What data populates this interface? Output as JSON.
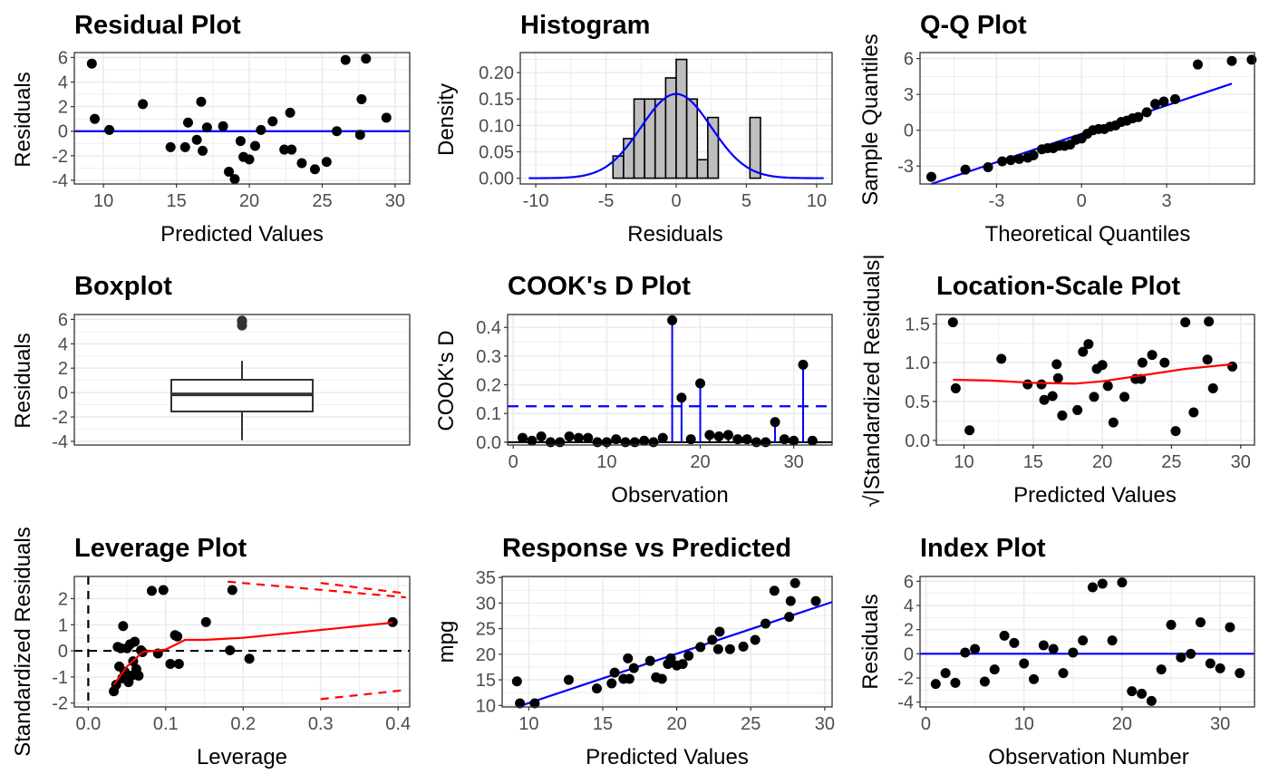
{
  "colors": {
    "point": "#000000",
    "line_blue": "#0000ff",
    "line_red": "#ff0000",
    "grid": "#ebebeb",
    "bar_fill": "#bebebe",
    "panel_border": "#333333",
    "tick_text": "#4d4d4d"
  },
  "chart_data": [
    {
      "id": "residual",
      "type": "scatter",
      "title": "Residual Plot",
      "xlabel": "Predicted Values",
      "ylabel": "Residuals",
      "xlim": [
        8,
        31
      ],
      "ylim": [
        -4.3,
        6.4
      ],
      "xticks": [
        10,
        15,
        20,
        25,
        30
      ],
      "yticks": [
        -4,
        -2,
        0,
        2,
        4,
        6
      ],
      "ytick_labels": [
        "-4",
        "-2",
        "0",
        "2",
        "4",
        "6"
      ],
      "x": [
        9.2,
        9.4,
        10.4,
        12.7,
        14.6,
        15.6,
        15.8,
        16.4,
        16.7,
        16.8,
        17.1,
        18.2,
        18.6,
        19.0,
        19.4,
        19.6,
        20.0,
        20.4,
        20.8,
        21.6,
        22.4,
        22.8,
        22.9,
        23.6,
        24.5,
        25.3,
        26.0,
        26.6,
        27.6,
        27.7,
        28.0,
        29.4
      ],
      "y": [
        5.5,
        1.0,
        0.1,
        2.2,
        -1.3,
        -1.3,
        0.7,
        -0.7,
        2.4,
        -1.6,
        0.3,
        0.4,
        -3.3,
        -3.9,
        -0.8,
        -2.1,
        -2.3,
        -1.2,
        0.1,
        0.8,
        -1.5,
        1.5,
        -1.5,
        -2.6,
        -3.1,
        -2.5,
        0.0,
        5.8,
        -0.3,
        2.6,
        5.9,
        1.1
      ],
      "hlines": [
        {
          "y": 0,
          "color": "#0000ff",
          "style": "solid"
        }
      ]
    },
    {
      "id": "histogram",
      "type": "bar",
      "title": "Histogram",
      "xlabel": "Residuals",
      "ylabel": "Density",
      "xlim": [
        -11.1,
        11.1
      ],
      "ylim": [
        -0.011,
        0.238
      ],
      "xticks": [
        -10,
        -5,
        0,
        5,
        10
      ],
      "yticks": [
        0,
        0.05,
        0.1,
        0.15,
        0.2
      ],
      "ytick_labels": [
        "0.00",
        "0.05",
        "0.10",
        "0.15",
        "0.20"
      ],
      "bin_edges": [
        -10.5,
        -9.75,
        -9.0,
        -8.25,
        -7.5,
        -6.75,
        -6.0,
        -5.25,
        -4.5,
        -3.75,
        -3.0,
        -2.25,
        -1.5,
        -0.75,
        0.0,
        0.75,
        1.5,
        2.25,
        3.0,
        3.75,
        4.5,
        5.25,
        6.0,
        6.75,
        7.5,
        8.25,
        9.0,
        9.75,
        10.5
      ],
      "values": [
        0,
        0,
        0,
        0,
        0,
        0,
        0,
        0,
        0.042,
        0.075,
        0.15,
        0.15,
        0.15,
        0.19,
        0.225,
        0.15,
        0.035,
        0.115,
        0,
        0,
        0,
        0.115,
        0,
        0,
        0,
        0,
        0,
        0
      ],
      "density_curve": {
        "mean": 0,
        "sd": 2.5,
        "color": "#0000ff"
      }
    },
    {
      "id": "qq",
      "type": "scatter",
      "title": "Q-Q Plot",
      "xlabel": "Theoretical Quantiles",
      "ylabel": "Sample Quantiles",
      "xlim": [
        -5.7,
        6.1
      ],
      "ylim": [
        -4.5,
        6.5
      ],
      "xticks": [
        -3,
        0,
        3
      ],
      "yticks": [
        -3,
        0,
        3,
        6
      ],
      "ytick_labels": [
        "-3",
        "0",
        "3",
        "6"
      ],
      "x": [
        -5.3,
        -4.1,
        -3.3,
        -2.8,
        -2.5,
        -2.2,
        -1.9,
        -1.7,
        -1.4,
        -1.2,
        -1.0,
        -0.8,
        -0.6,
        -0.4,
        -0.2,
        0.0,
        0.2,
        0.4,
        0.6,
        0.8,
        1.0,
        1.2,
        1.4,
        1.6,
        1.8,
        2.0,
        2.3,
        2.6,
        2.9,
        3.3,
        4.1,
        5.3
      ],
      "y": [
        -3.9,
        -3.3,
        -3.1,
        -2.6,
        -2.5,
        -2.4,
        -2.3,
        -2.1,
        -1.6,
        -1.5,
        -1.5,
        -1.3,
        -1.3,
        -1.2,
        -0.8,
        -0.7,
        -0.3,
        0.0,
        0.1,
        0.1,
        0.3,
        0.4,
        0.7,
        0.8,
        1.0,
        1.1,
        1.5,
        2.2,
        2.4,
        2.6,
        5.5,
        5.8
      ],
      "extra_points": [
        [
          6.0,
          5.9
        ]
      ],
      "ref_line": {
        "x": [
          -5.3,
          5.3
        ],
        "y": [
          -4.5,
          3.9
        ],
        "color": "#0000ff"
      }
    },
    {
      "id": "boxplot",
      "type": "box",
      "title": "Boxplot",
      "xlabel": "",
      "ylabel": "Residuals",
      "ylim": [
        -4.3,
        6.4
      ],
      "yticks": [
        -4,
        -2,
        0,
        2,
        4,
        6
      ],
      "ytick_labels": [
        "-4",
        "-2",
        "0",
        "2",
        "4",
        "6"
      ],
      "box": {
        "whisker_low": -3.9,
        "q1": -1.55,
        "median": -0.15,
        "q3": 1.05,
        "whisker_high": 2.6
      },
      "outliers": [
        5.5,
        5.8,
        5.9
      ]
    },
    {
      "id": "cooks",
      "type": "line",
      "title": "COOK's D Plot",
      "xlabel": "Observation",
      "ylabel": "COOK's D",
      "xlim": [
        -0.6,
        34.1
      ],
      "ylim": [
        -0.01,
        0.445
      ],
      "xticks": [
        0,
        10,
        20,
        30
      ],
      "yticks": [
        0,
        0.1,
        0.2,
        0.3,
        0.4
      ],
      "ytick_labels": [
        "0.0",
        "0.1",
        "0.2",
        "0.3",
        "0.4"
      ],
      "x": [
        1,
        2,
        3,
        4,
        5,
        6,
        7,
        8,
        9,
        10,
        11,
        12,
        13,
        14,
        15,
        16,
        17,
        18,
        19,
        20,
        21,
        22,
        23,
        24,
        25,
        26,
        27,
        28,
        29,
        30,
        31,
        32
      ],
      "y": [
        0.015,
        0.005,
        0.02,
        0.0,
        0.0,
        0.02,
        0.015,
        0.015,
        0.0,
        0.0,
        0.01,
        0.0,
        0.0,
        0.005,
        0.0,
        0.015,
        0.425,
        0.155,
        0.01,
        0.205,
        0.025,
        0.02,
        0.025,
        0.01,
        0.01,
        0.0,
        0.0,
        0.07,
        0.01,
        0.005,
        0.27,
        0.005
      ],
      "threshold": 0.125,
      "highlight": [
        17,
        18,
        20,
        28,
        31
      ]
    },
    {
      "id": "locscale",
      "type": "scatter",
      "title": "Location-Scale Plot",
      "xlabel": "Predicted Values",
      "ylabel": "√|Standardized Residuals|",
      "xlim": [
        8,
        31
      ],
      "ylim": [
        -0.06,
        1.62
      ],
      "xticks": [
        10,
        15,
        20,
        25,
        30
      ],
      "yticks": [
        0,
        0.5,
        1.0,
        1.5
      ],
      "ytick_labels": [
        "0.0",
        "0.5",
        "1.0",
        "1.5"
      ],
      "x": [
        9.2,
        9.4,
        10.4,
        12.7,
        14.6,
        15.6,
        15.8,
        16.4,
        16.7,
        16.8,
        17.1,
        18.2,
        18.6,
        19.0,
        19.4,
        19.6,
        20.0,
        20.4,
        20.8,
        21.6,
        22.4,
        22.8,
        22.9,
        23.6,
        24.5,
        25.3,
        26.0,
        26.6,
        27.6,
        27.7,
        28.0,
        29.4
      ],
      "y": [
        1.52,
        0.67,
        0.13,
        1.05,
        0.72,
        0.72,
        0.52,
        0.57,
        0.98,
        0.8,
        0.32,
        0.39,
        1.14,
        1.24,
        0.56,
        0.92,
        0.97,
        0.7,
        0.23,
        0.56,
        0.79,
        0.79,
        1.0,
        1.1,
        1.0,
        0.12,
        1.52,
        0.36,
        1.04,
        1.53,
        0.67,
        0.95
      ],
      "smooth": {
        "x": [
          9.2,
          12,
          15,
          18,
          20,
          23,
          26,
          29.4
        ],
        "y": [
          0.78,
          0.77,
          0.74,
          0.73,
          0.76,
          0.84,
          0.92,
          0.98
        ],
        "color": "#ff0000"
      }
    },
    {
      "id": "leverage",
      "type": "scatter",
      "title": "Leverage Plot",
      "xlabel": "Leverage",
      "ylabel": "Standardized Residuals",
      "xlim": [
        -0.018,
        0.415
      ],
      "ylim": [
        -2.15,
        2.85
      ],
      "xticks": [
        0,
        0.1,
        0.2,
        0.3,
        0.4
      ],
      "yticks": [
        -2,
        -1,
        0,
        1,
        2
      ],
      "xtick_labels": [
        "0.0",
        "0.1",
        "0.2",
        "0.3",
        "0.4"
      ],
      "ytick_labels": [
        "-2",
        "-1",
        "0",
        "1",
        "2"
      ],
      "x": [
        0.033,
        0.036,
        0.038,
        0.04,
        0.042,
        0.044,
        0.045,
        0.047,
        0.05,
        0.052,
        0.054,
        0.056,
        0.058,
        0.06,
        0.062,
        0.065,
        0.068,
        0.07,
        0.082,
        0.09,
        0.097,
        0.106,
        0.112,
        0.115,
        0.117,
        0.152,
        0.183,
        0.186,
        0.208,
        0.393
      ],
      "y": [
        -1.55,
        -1.3,
        0.15,
        -0.6,
        0.1,
        -1.05,
        0.95,
        -0.8,
        0.1,
        -1.2,
        0.25,
        -0.95,
        -0.4,
        0.35,
        -0.7,
        -0.95,
        0.02,
        -0.05,
        2.3,
        -0.1,
        2.33,
        -0.5,
        0.6,
        0.55,
        -0.5,
        1.1,
        0.02,
        2.33,
        -0.3,
        1.1
      ],
      "smooth": {
        "x": [
          0.033,
          0.05,
          0.07,
          0.1,
          0.125,
          0.15,
          0.2,
          0.3,
          0.393
        ],
        "y": [
          -1.3,
          -0.6,
          -0.05,
          0.05,
          0.42,
          0.42,
          0.5,
          0.8,
          1.08
        ],
        "color": "#ff0000"
      },
      "hlines": [
        {
          "y": 0,
          "color": "#000000",
          "style": "dashed"
        }
      ],
      "vlines": [
        {
          "x": 0,
          "color": "#000000",
          "style": "dashed"
        }
      ],
      "contours": [
        {
          "x": [
            0.18,
            0.41
          ],
          "y": [
            2.65,
            2.05
          ]
        },
        {
          "x": [
            0.3,
            0.41
          ],
          "y": [
            2.6,
            2.2
          ]
        },
        {
          "x": [
            0.3,
            0.41
          ],
          "y": [
            -1.85,
            -1.5
          ]
        }
      ]
    },
    {
      "id": "response",
      "type": "scatter",
      "title": "Response vs Predicted",
      "xlabel": "Predicted Values",
      "ylabel": "mpg",
      "xlim": [
        8.2,
        30.5
      ],
      "ylim": [
        9.7,
        35.2
      ],
      "xticks": [
        10,
        15,
        20,
        25,
        30
      ],
      "yticks": [
        10,
        15,
        20,
        25,
        30,
        35
      ],
      "ytick_labels": [
        "10",
        "15",
        "20",
        "25",
        "30",
        "35"
      ],
      "x": [
        9.2,
        9.4,
        10.4,
        12.7,
        14.6,
        15.6,
        15.8,
        16.4,
        16.7,
        16.8,
        17.1,
        18.2,
        18.6,
        19.0,
        19.4,
        19.6,
        20.0,
        20.4,
        20.8,
        21.6,
        22.4,
        22.8,
        22.9,
        23.6,
        24.5,
        25.3,
        26.0,
        26.6,
        27.6,
        27.7,
        28.0,
        29.4
      ],
      "y": [
        14.7,
        10.4,
        10.4,
        15.0,
        13.3,
        14.3,
        16.4,
        15.2,
        19.2,
        15.2,
        17.3,
        18.7,
        15.5,
        15.2,
        18.1,
        19.2,
        17.8,
        18.1,
        19.7,
        21.4,
        22.8,
        21.0,
        24.4,
        21.0,
        21.5,
        22.8,
        26.0,
        32.4,
        27.3,
        30.4,
        33.9,
        30.4
      ],
      "ref_line": {
        "x": [
          9.2,
          30.5
        ],
        "y": [
          9.7,
          30.2
        ],
        "color": "#0000ff"
      }
    },
    {
      "id": "index",
      "type": "scatter",
      "title": "Index Plot",
      "xlabel": "Observation Number",
      "ylabel": "Residuals",
      "xlim": [
        -0.6,
        33.5
      ],
      "ylim": [
        -4.4,
        6.4
      ],
      "xticks": [
        0,
        10,
        20,
        30
      ],
      "yticks": [
        -4,
        -2,
        0,
        2,
        4,
        6
      ],
      "ytick_labels": [
        "-4",
        "-2",
        "0",
        "2",
        "4",
        "6"
      ],
      "x": [
        1,
        2,
        3,
        4,
        5,
        6,
        7,
        8,
        9,
        10,
        11,
        12,
        13,
        14,
        15,
        16,
        17,
        18,
        19,
        20,
        21,
        22,
        23,
        24,
        25,
        26,
        27,
        28,
        29,
        30,
        31,
        32
      ],
      "y": [
        -2.5,
        -1.6,
        -2.4,
        0.1,
        0.4,
        -2.3,
        -1.3,
        1.5,
        0.9,
        -0.8,
        -2.1,
        0.7,
        0.4,
        -1.6,
        0.1,
        1.1,
        5.5,
        5.8,
        1.1,
        5.9,
        -3.1,
        -3.3,
        -3.9,
        -1.3,
        2.4,
        -0.3,
        0.0,
        2.6,
        -0.8,
        -1.2,
        2.2,
        -1.6
      ],
      "hlines": [
        {
          "y": 0,
          "color": "#0000ff",
          "style": "solid"
        }
      ]
    }
  ]
}
